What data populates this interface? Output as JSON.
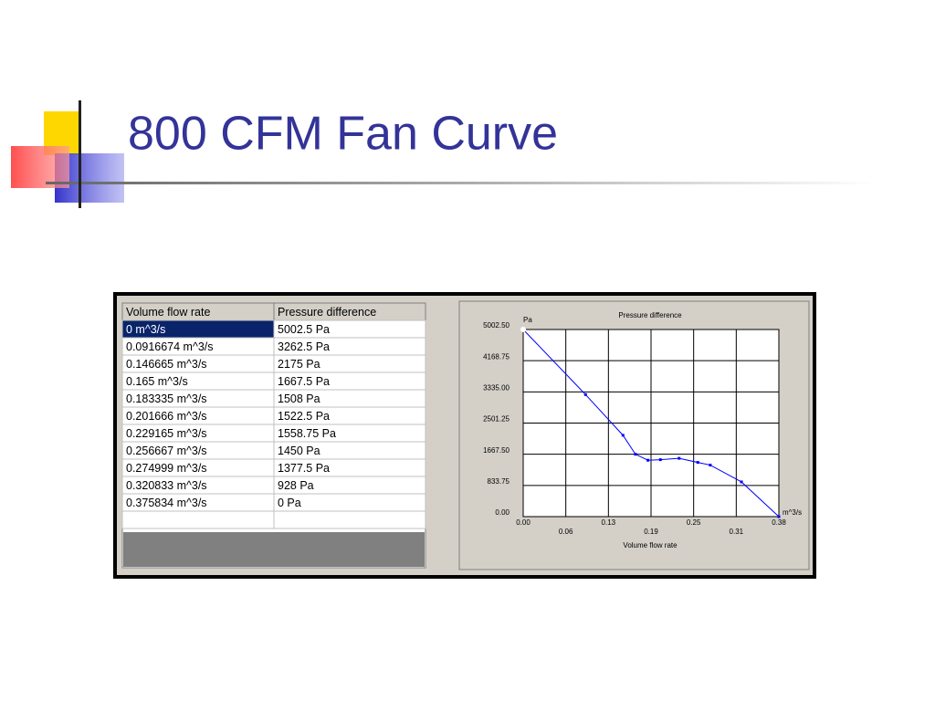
{
  "header": {
    "title": "800 CFM Fan Curve"
  },
  "table": {
    "columns": [
      "Volume flow rate",
      "Pressure difference"
    ],
    "rows": [
      [
        "0 m^3/s",
        "5002.5 Pa"
      ],
      [
        "0.0916674 m^3/s",
        "3262.5 Pa"
      ],
      [
        "0.146665 m^3/s",
        "2175 Pa"
      ],
      [
        "0.165 m^3/s",
        "1667.5 Pa"
      ],
      [
        "0.183335 m^3/s",
        "1508 Pa"
      ],
      [
        "0.201666 m^3/s",
        "1522.5 Pa"
      ],
      [
        "0.229165 m^3/s",
        "1558.75 Pa"
      ],
      [
        "0.256667 m^3/s",
        "1450 Pa"
      ],
      [
        "0.274999 m^3/s",
        "1377.5 Pa"
      ],
      [
        "0.320833 m^3/s",
        "928 Pa"
      ],
      [
        "0.375834 m^3/s",
        "0 Pa"
      ]
    ]
  },
  "chart_data": {
    "type": "line",
    "title": "Pressure difference",
    "x_label": "Volume flow rate",
    "x_unit": "m^3/s",
    "y_unit": "Pa",
    "x": [
      0,
      0.0916674,
      0.146665,
      0.165,
      0.183335,
      0.201666,
      0.229165,
      0.256667,
      0.274999,
      0.320833,
      0.375834
    ],
    "series": [
      {
        "color": "#0000ff",
        "values": [
          5002.5,
          3262.5,
          2175,
          1667.5,
          1508,
          1522.5,
          1558.75,
          1450,
          1377.5,
          928,
          0
        ]
      }
    ],
    "xlim": [
      0,
      0.375834
    ],
    "ylim": [
      0,
      5002.5
    ],
    "xticks": [
      {
        "value": 0,
        "label": "0.00"
      },
      {
        "value": 0.062639,
        "label": "0.06"
      },
      {
        "value": 0.125278,
        "label": "0.13"
      },
      {
        "value": 0.187917,
        "label": "0.19"
      },
      {
        "value": 0.250556,
        "label": "0.25"
      },
      {
        "value": 0.313195,
        "label": "0.31"
      },
      {
        "value": 0.375834,
        "label": "0.38"
      }
    ],
    "yticks": [
      {
        "value": 0,
        "label": "0.00"
      },
      833.75,
      {
        "value": 1667.5,
        "label": "1667.50"
      },
      {
        "value": 2501.25,
        "label": "2501.25"
      },
      {
        "value": 3335,
        "label": "3335.00"
      },
      4168.75,
      {
        "value": 5002.5,
        "label": "5002.50"
      }
    ],
    "grid": true
  }
}
